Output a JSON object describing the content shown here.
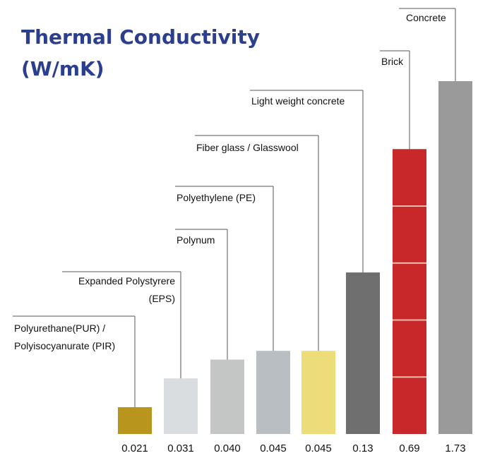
{
  "chart_data": {
    "type": "bar",
    "title": [
      "Thermal Conductivity",
      "(W/mK)"
    ],
    "categories": [
      [
        "Polyurethane(PUR) /",
        "Polyisocyanurate (PIR)"
      ],
      [
        "Expanded Polystyrere",
        "(EPS)"
      ],
      [
        "Polynum"
      ],
      [
        "Polyethylene (PE)"
      ],
      [
        "Fiber glass / Glasswool"
      ],
      [
        "Light weight concrete"
      ],
      [
        "Brick"
      ],
      [
        "Concrete"
      ]
    ],
    "values": [
      0.021,
      0.031,
      0.04,
      0.045,
      0.045,
      0.13,
      0.69,
      1.73
    ],
    "value_labels": [
      "0.021",
      "0.031",
      "0.040",
      "0.045",
      "0.045",
      "0.13",
      "0.69",
      "1.73"
    ],
    "colors": [
      "#b8961e",
      "#d9dde0",
      "#c4c6c6",
      "#b9bec2",
      "#ecdc7a",
      "#6f6f6f",
      "#c8282a",
      "#9a9a9a"
    ],
    "log_scale": true
  }
}
